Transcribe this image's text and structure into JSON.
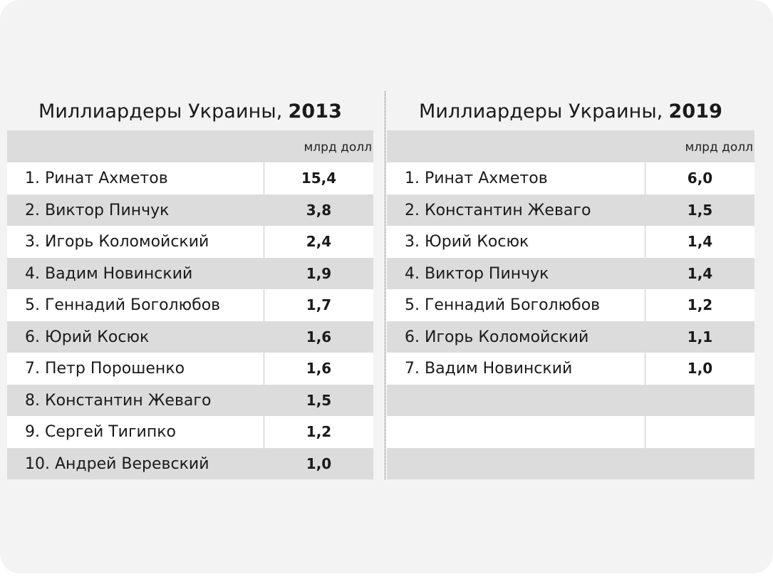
{
  "tables": [
    {
      "title_prefix": "Миллиардеры Украины,",
      "title_year": "2013",
      "unit": "млрд долл",
      "rows": [
        {
          "name": "1. Ринат Ахметов",
          "value": "15,4"
        },
        {
          "name": "2. Виктор Пинчук",
          "value": "3,8"
        },
        {
          "name": "3. Игорь Коломойский",
          "value": "2,4"
        },
        {
          "name": "4. Вадим Новинский",
          "value": "1,9"
        },
        {
          "name": "5. Геннадий Боголюбов",
          "value": "1,7"
        },
        {
          "name": "6. Юрий Косюк",
          "value": "1,6"
        },
        {
          "name": "7. Петр Порошенко",
          "value": "1,6"
        },
        {
          "name": "8. Константин Жеваго",
          "value": "1,5"
        },
        {
          "name": "9. Сергей Тигипко",
          "value": "1,2"
        },
        {
          "name": "10. Андрей Веревский",
          "value": "1,0"
        }
      ]
    },
    {
      "title_prefix": "Миллиардеры Украины,",
      "title_year": "2019",
      "unit": "млрд долл",
      "rows": [
        {
          "name": "1. Ринат Ахметов",
          "value": "6,0"
        },
        {
          "name": "2. Константин Жеваго",
          "value": "1,5"
        },
        {
          "name": "3. Юрий Косюк",
          "value": "1,4"
        },
        {
          "name": "4. Виктор Пинчук",
          "value": "1,4"
        },
        {
          "name": "5. Геннадий Боголюбов",
          "value": "1,2"
        },
        {
          "name": "6. Игорь Коломойский",
          "value": "1,1"
        },
        {
          "name": "7. Вадим Новинский",
          "value": "1,0"
        },
        {
          "name": "",
          "value": ""
        },
        {
          "name": "",
          "value": ""
        },
        {
          "name": "",
          "value": ""
        }
      ]
    }
  ]
}
